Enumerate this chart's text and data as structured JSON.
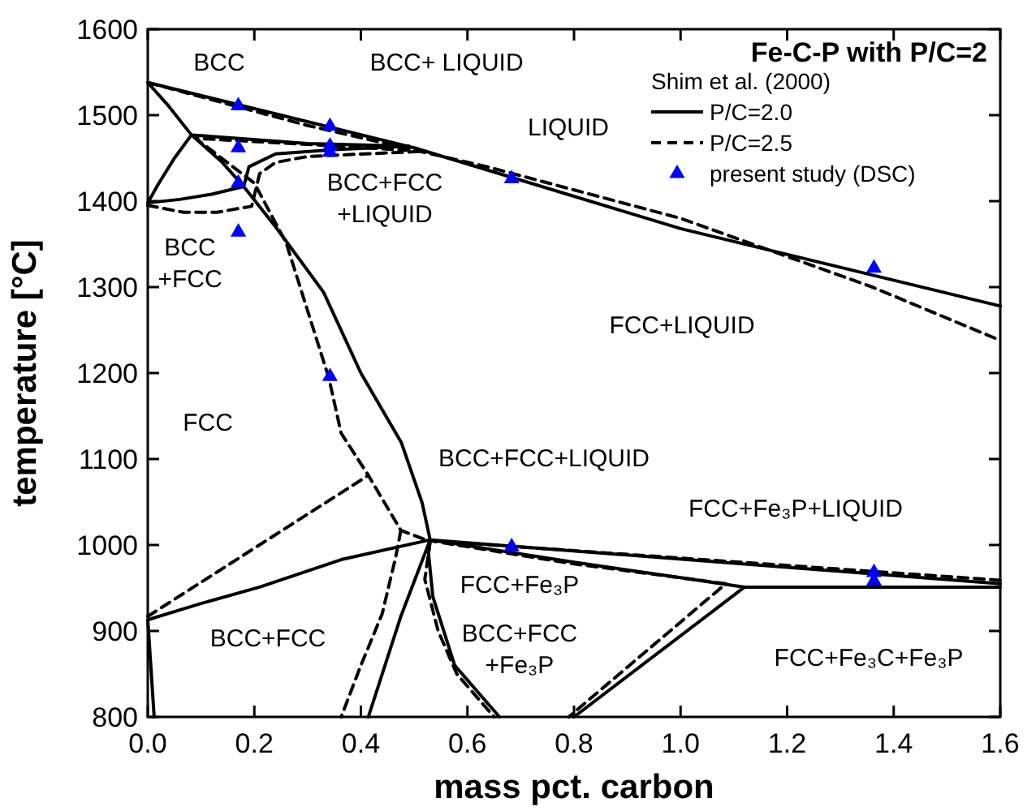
{
  "chart_data": {
    "type": "line",
    "title": "Fe-C-P with P/C=2",
    "legend_title": "Shim et al. (2000)",
    "xlabel": "mass pct. carbon",
    "ylabel": "temperature [°C]",
    "xlim": [
      0,
      1.6
    ],
    "ylim": [
      800,
      1600
    ],
    "xticks": [
      {
        "value": 0,
        "label": "0.0"
      },
      0.2,
      0.4,
      0.6,
      0.8,
      {
        "value": 1,
        "label": "1.0"
      },
      1.2,
      1.4,
      1.6
    ],
    "yticks": [
      800,
      900,
      1000,
      1100,
      1200,
      1300,
      1400,
      1500,
      1600
    ],
    "legend": "top right",
    "grid": false,
    "series": [
      {
        "name": "P/C=2.0",
        "color": "#000000",
        "line_style": "solid",
        "x": [
          1.6,
          1.0,
          0.5,
          0,
          0.04,
          0.082,
          0.14,
          0.18,
          0.24,
          0.33,
          0.4,
          0.476,
          0.515,
          0.53,
          0.527,
          0.535,
          0.576,
          0.66
        ],
        "values": [
          1278,
          1368,
          1462,
          1538,
          1510,
          1477,
          1445,
          1417,
          1370,
          1294,
          1200,
          1119,
          1049,
          1006,
          990,
          940,
          860,
          800
        ]
      },
      {
        "color": "#000000",
        "line_style": "solid",
        "x": [
          0,
          0.02,
          0.05,
          0.082,
          0.3,
          0.49
        ],
        "values": [
          1398,
          1420,
          1450,
          1477,
          1467,
          1464
        ]
      },
      {
        "color": "#000000",
        "line_style": "solid",
        "x": [
          0,
          0.06,
          0.12,
          0.18,
          0.19,
          0.24,
          0.35,
          0.49
        ],
        "values": [
          1398,
          1402,
          1408,
          1417,
          1440,
          1455,
          1460,
          1464
        ]
      },
      {
        "color": "#000000",
        "line_style": "solid",
        "x": [
          0.012,
          0,
          0.1,
          0.21,
          0.363,
          0.53,
          0.475,
          0.414
        ],
        "values": [
          800,
          913,
          932,
          951,
          983,
          1006,
          917,
          800
        ]
      },
      {
        "color": "#000000",
        "line_style": "solid",
        "x": [
          1.6,
          0.53,
          0.8,
          1.0,
          1.12,
          0.8
        ],
        "values": [
          955,
          1006,
          980,
          962,
          951,
          800
        ]
      },
      {
        "color": "#000000",
        "line_style": "solid",
        "x": [
          1.12,
          1.6
        ],
        "values": [
          951,
          951
        ]
      },
      {
        "name": "P/C=2.5",
        "color": "#000000",
        "line_style": "dashed",
        "x": [
          0,
          0.3,
          0.637,
          1.0,
          1.36,
          1.6
        ],
        "values": [
          1538,
          1488,
          1440,
          1380,
          1300,
          1238
        ]
      },
      {
        "color": "#000000",
        "line_style": "dashed",
        "x": [
          0,
          0.067,
          0.13,
          0.195,
          0.21,
          0.24,
          0.3,
          0.52
        ],
        "values": [
          1395,
          1387,
          1387,
          1394,
          1432,
          1445,
          1452,
          1458
        ]
      },
      {
        "color": "#000000",
        "line_style": "dashed",
        "x": [
          0.52,
          0.3,
          0.09,
          0.2,
          0.26,
          0.34,
          0.363,
          0.414,
          0.475,
          0.53,
          0.52,
          0.545,
          0.58,
          0.65
        ],
        "values": [
          1458,
          1466,
          1473,
          1421,
          1351,
          1194,
          1130,
          1081,
          1017,
          1004,
          960,
          900,
          850,
          800
        ]
      },
      {
        "color": "#000000",
        "line_style": "dashed",
        "x": [
          0,
          0.414
        ],
        "values": [
          917,
          1081
        ]
      },
      {
        "color": "#000000",
        "line_style": "dashed",
        "x": [
          0.475,
          0.465,
          0.44,
          0.4,
          0.363
        ],
        "values": [
          1017,
          985,
          920,
          860,
          800
        ]
      },
      {
        "color": "#000000",
        "line_style": "dashed",
        "x": [
          1.6,
          0.53,
          0.8,
          1.085,
          0.79
        ],
        "values": [
          959,
          1005,
          978,
          955,
          800
        ]
      },
      {
        "name": "present study (DSC)",
        "type": "scatter",
        "color": "#0000ff",
        "marker": "triangle",
        "x": [
          0.17,
          0.342,
          0.17,
          0.342,
          0.342,
          0.17,
          0.17,
          0.683,
          0.342,
          0.683,
          1.363,
          1.363,
          1.363
        ],
        "values": [
          1511,
          1487,
          1462,
          1464,
          1457,
          1421,
          1364,
          1426,
          1196,
          998,
          968,
          958,
          1322
        ]
      }
    ],
    "annotations": [
      "BCC",
      "BCC+ LIQUID",
      "LIQUID",
      "BCC+FCC\n+LIQUID",
      "BCC\n+FCC",
      "FCC+LIQUID",
      "FCC",
      "BCC+FCC+LIQUID",
      "FCC+Fe₃P+LIQUID",
      "FCC+Fe₃P",
      "BCC+FCC",
      "BCC+FCC\n+Fe₃P",
      "FCC+Fe₃C+Fe₃P"
    ]
  }
}
